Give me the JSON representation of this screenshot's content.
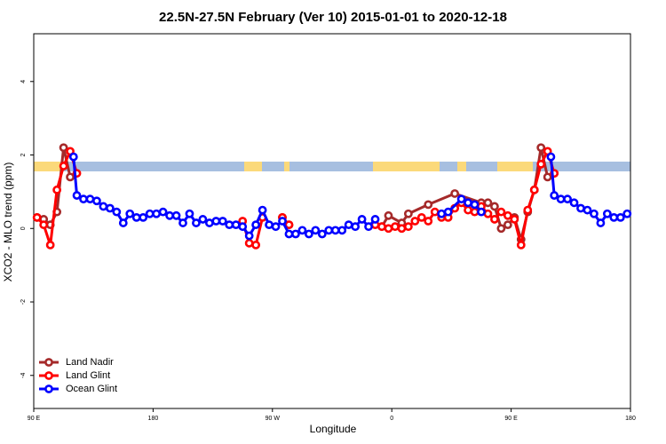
{
  "chart_data": {
    "type": "line",
    "title": "22.5N-27.5N February (Ver 10)   2015-01-01 to 2020-12-18",
    "x_label": "Longitude",
    "y_label": "XCO2 - MLO trend (ppm)",
    "xlim": [
      90,
      540
    ],
    "ylim": [
      -4.9,
      5.3
    ],
    "xticks": [
      {
        "value": 90,
        "label": "90 E"
      },
      180,
      {
        "value": 270,
        "label": "90 W"
      },
      {
        "value": 360,
        "label": "0"
      },
      {
        "value": 450,
        "label": "90 E"
      },
      {
        "value": 540,
        "label": "180"
      }
    ],
    "yticks": [
      -4,
      -2,
      0,
      2,
      4
    ],
    "legend": "bottomleft",
    "series": [
      {
        "name": "Land Nadir",
        "color": "#a52a2a",
        "x": [
          92.5,
          97.5,
          102.5,
          107.5,
          112.5,
          117.5,
          200,
          277.5,
          282.5,
          300,
          352.5,
          357.5,
          367.5,
          372.5,
          387.5,
          407.5,
          427.5,
          432.5,
          437.5,
          442.5,
          447.5,
          452.5,
          457.5,
          462.5,
          467.5,
          472.5,
          477.5,
          482.5
        ],
        "values": [
          0.3,
          0.25,
          0.1,
          0.45,
          2.2,
          1.4,
          null,
          0.3,
          0.1,
          null,
          0.05,
          0.35,
          0.15,
          0.4,
          0.65,
          0.95,
          0.7,
          0.7,
          0.6,
          0.0,
          0.1,
          0.3,
          -0.3,
          0.45,
          1.05,
          2.2,
          1.4,
          1.5
        ]
      },
      {
        "name": "Land Glint",
        "color": "#ff0000",
        "x": [
          92.5,
          97.5,
          102.5,
          107.5,
          112.5,
          117.5,
          122.5,
          200,
          247.5,
          252.5,
          257.5,
          262.5,
          270,
          277.5,
          282.5,
          300,
          347.5,
          352.5,
          357.5,
          362.5,
          367.5,
          372.5,
          377.5,
          382.5,
          387.5,
          392.5,
          397.5,
          402.5,
          407.5,
          412.5,
          417.5,
          422.5,
          427.5,
          432.5,
          437.5,
          442.5,
          447.5,
          452.5,
          457.5,
          462.5,
          467.5,
          472.5,
          477.5,
          482.5
        ],
        "values": [
          0.3,
          0.1,
          -0.45,
          1.05,
          1.7,
          2.1,
          1.5,
          null,
          0.2,
          -0.4,
          -0.45,
          0.3,
          null,
          0.3,
          0.1,
          null,
          0.1,
          0.05,
          0.0,
          0.05,
          0.0,
          0.05,
          0.2,
          0.3,
          0.2,
          0.45,
          0.3,
          0.3,
          0.55,
          0.7,
          0.5,
          0.45,
          0.6,
          0.4,
          0.25,
          0.45,
          0.35,
          0.25,
          -0.45,
          0.5,
          1.05,
          1.75,
          2.1,
          1.5
        ]
      },
      {
        "name": "Ocean Glint",
        "color": "#0000ff",
        "x": [
          120,
          122.5,
          127.5,
          132.5,
          137.5,
          142.5,
          147.5,
          152.5,
          157.5,
          162.5,
          167.5,
          172.5,
          177.5,
          182.5,
          187.5,
          192.5,
          197.5,
          202.5,
          207.5,
          212.5,
          217.5,
          222.5,
          227.5,
          232.5,
          237.5,
          242.5,
          247.5,
          252.5,
          257.5,
          262.5,
          267.5,
          272.5,
          277.5,
          282.5,
          287.5,
          292.5,
          297.5,
          302.5,
          307.5,
          312.5,
          317.5,
          322.5,
          327.5,
          332.5,
          337.5,
          342.5,
          347.5,
          372.5,
          397.5,
          402.5,
          412.5,
          417.5,
          422.5,
          427.5,
          460,
          480,
          482.5,
          487.5,
          492.5,
          497.5,
          502.5,
          507.5,
          512.5,
          517.5,
          522.5,
          527.5,
          532.5,
          537.5
        ],
        "values": [
          1.95,
          0.9,
          0.8,
          0.8,
          0.75,
          0.6,
          0.55,
          0.45,
          0.15,
          0.4,
          0.3,
          0.3,
          0.4,
          0.4,
          0.45,
          0.35,
          0.35,
          0.15,
          0.4,
          0.15,
          0.25,
          0.15,
          0.2,
          0.2,
          0.1,
          0.1,
          0.05,
          -0.2,
          0.1,
          0.5,
          0.1,
          0.05,
          0.2,
          -0.15,
          -0.15,
          -0.05,
          -0.15,
          -0.05,
          -0.15,
          -0.05,
          -0.05,
          -0.05,
          0.1,
          0.05,
          0.25,
          0.05,
          0.25,
          null,
          0.4,
          0.45,
          0.8,
          0.7,
          0.65,
          0.45,
          null,
          1.95,
          0.9,
          0.8,
          0.8,
          0.7,
          0.55,
          0.5,
          0.4,
          0.15,
          0.4,
          0.3,
          0.3,
          0.4
        ]
      }
    ]
  }
}
